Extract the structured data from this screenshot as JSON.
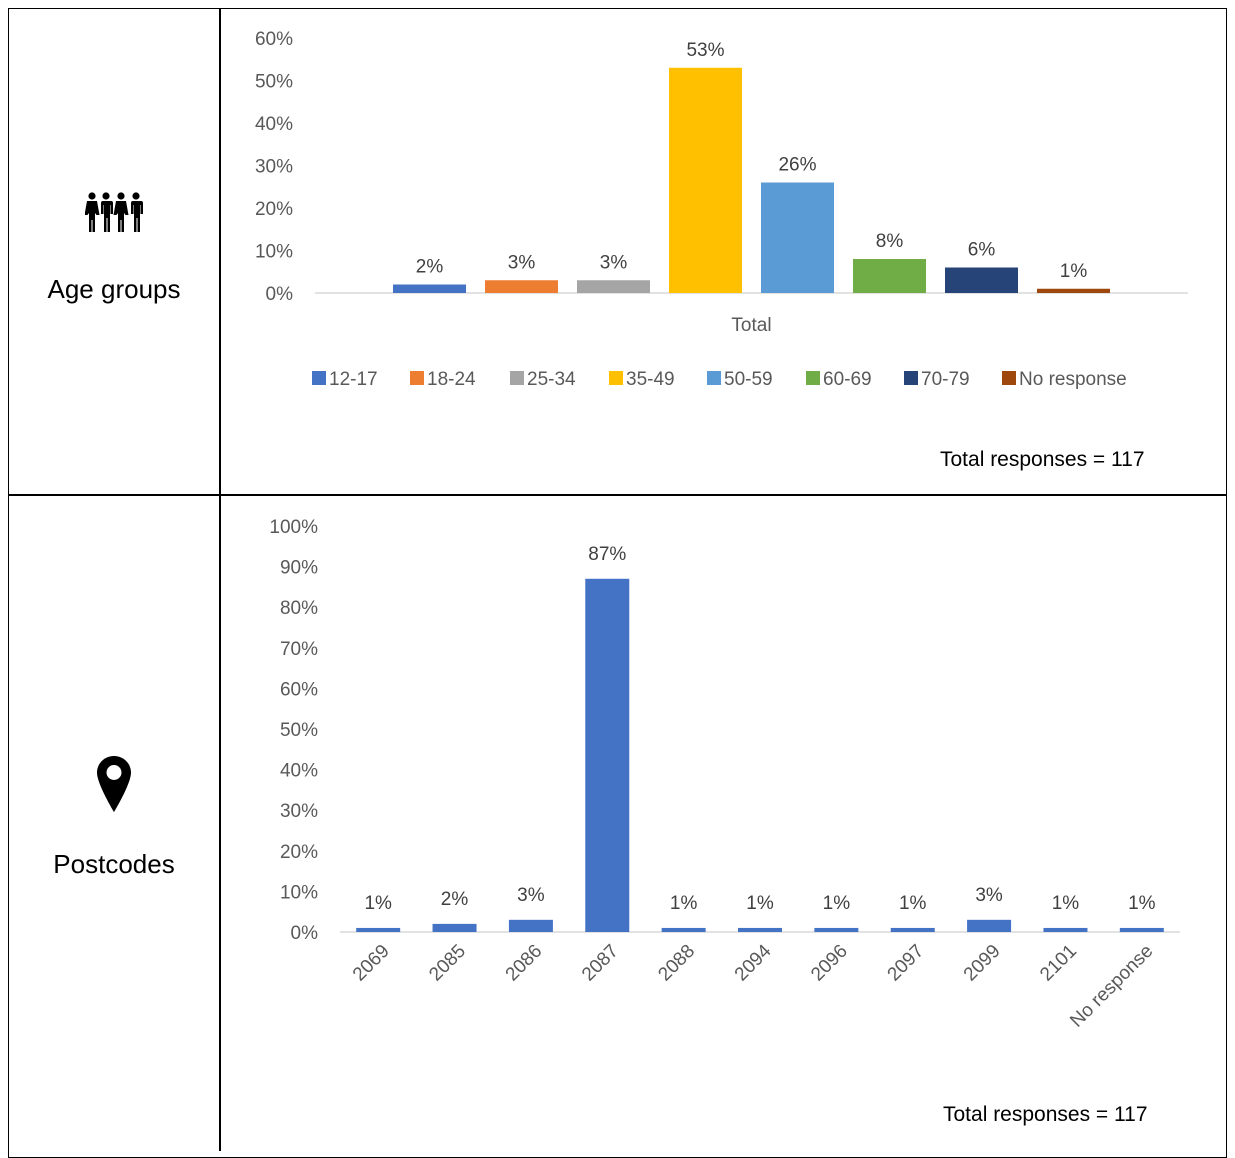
{
  "rows": [
    {
      "label": "Age groups",
      "icon": "people-group-icon",
      "total_note": "Total responses = 117"
    },
    {
      "label": "Postcodes",
      "icon": "map-pin-icon",
      "total_note": "Total responses = 117"
    }
  ],
  "chart_data": [
    {
      "type": "bar",
      "title": "",
      "categories": [
        "Total"
      ],
      "xlabel": "",
      "ylabel": "",
      "ylim": [
        0,
        60
      ],
      "yticks": [
        "0%",
        "10%",
        "20%",
        "30%",
        "40%",
        "50%",
        "60%"
      ],
      "grid": false,
      "legend_position": "bottom",
      "series": [
        {
          "name": "12-17",
          "values": [
            2
          ],
          "label": "2%",
          "color": "#4472C4"
        },
        {
          "name": "18-24",
          "values": [
            3
          ],
          "label": "3%",
          "color": "#ED7D31"
        },
        {
          "name": "25-34",
          "values": [
            3
          ],
          "label": "3%",
          "color": "#A5A5A5"
        },
        {
          "name": "35-49",
          "values": [
            53
          ],
          "label": "53%",
          "color": "#FFC000"
        },
        {
          "name": "50-59",
          "values": [
            26
          ],
          "label": "26%",
          "color": "#5B9BD5"
        },
        {
          "name": "60-69",
          "values": [
            8
          ],
          "label": "8%",
          "color": "#70AD47"
        },
        {
          "name": "70-79",
          "values": [
            6
          ],
          "label": "6%",
          "color": "#264478"
        },
        {
          "name": "No response",
          "values": [
            1
          ],
          "label": "1%",
          "color": "#9E480E"
        }
      ]
    },
    {
      "type": "bar",
      "title": "",
      "categories": [
        "2069",
        "2085",
        "2086",
        "2087",
        "2088",
        "2094",
        "2096",
        "2097",
        "2099",
        "2101",
        "No response"
      ],
      "values": [
        1,
        2,
        3,
        87,
        1,
        1,
        1,
        1,
        3,
        1,
        1
      ],
      "labels": [
        "1%",
        "2%",
        "3%",
        "87%",
        "1%",
        "1%",
        "1%",
        "1%",
        "3%",
        "1%",
        "1%"
      ],
      "xlabel": "",
      "ylabel": "",
      "ylim": [
        0,
        100
      ],
      "yticks": [
        "0%",
        "10%",
        "20%",
        "30%",
        "40%",
        "50%",
        "60%",
        "70%",
        "80%",
        "90%",
        "100%"
      ],
      "grid": false,
      "color": "#4472C4"
    }
  ]
}
